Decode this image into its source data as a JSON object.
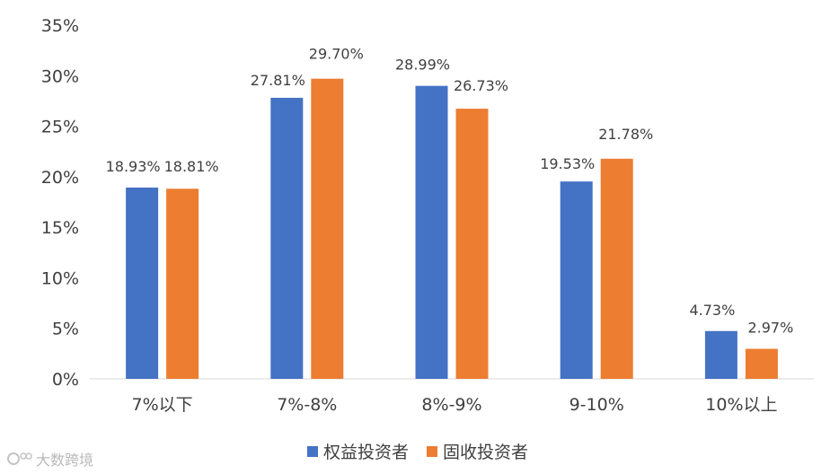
{
  "chart_data": {
    "type": "bar",
    "categories": [
      "7%以下",
      "7%-8%",
      "8%-9%",
      "9-10%",
      "10%以上"
    ],
    "series": [
      {
        "name": "权益投资者",
        "values": [
          18.93,
          27.81,
          28.99,
          19.53,
          4.73
        ],
        "labels": [
          "18.93%",
          "27.81%",
          "28.99%",
          "19.53%",
          "4.73%"
        ],
        "color": "#4472C4"
      },
      {
        "name": "固收投资者",
        "values": [
          18.81,
          29.7,
          26.73,
          21.78,
          2.97
        ],
        "labels": [
          "18.81%",
          "29.70%",
          "26.73%",
          "21.78%",
          "2.97%"
        ],
        "color": "#ED7D31"
      }
    ],
    "ylim": [
      0,
      35
    ],
    "yticks": [
      "0%",
      "5%",
      "10%",
      "15%",
      "20%",
      "25%",
      "30%",
      "35%"
    ],
    "grid": false,
    "legend_position": "bottom"
  },
  "watermark": {
    "text": "大数跨境"
  }
}
